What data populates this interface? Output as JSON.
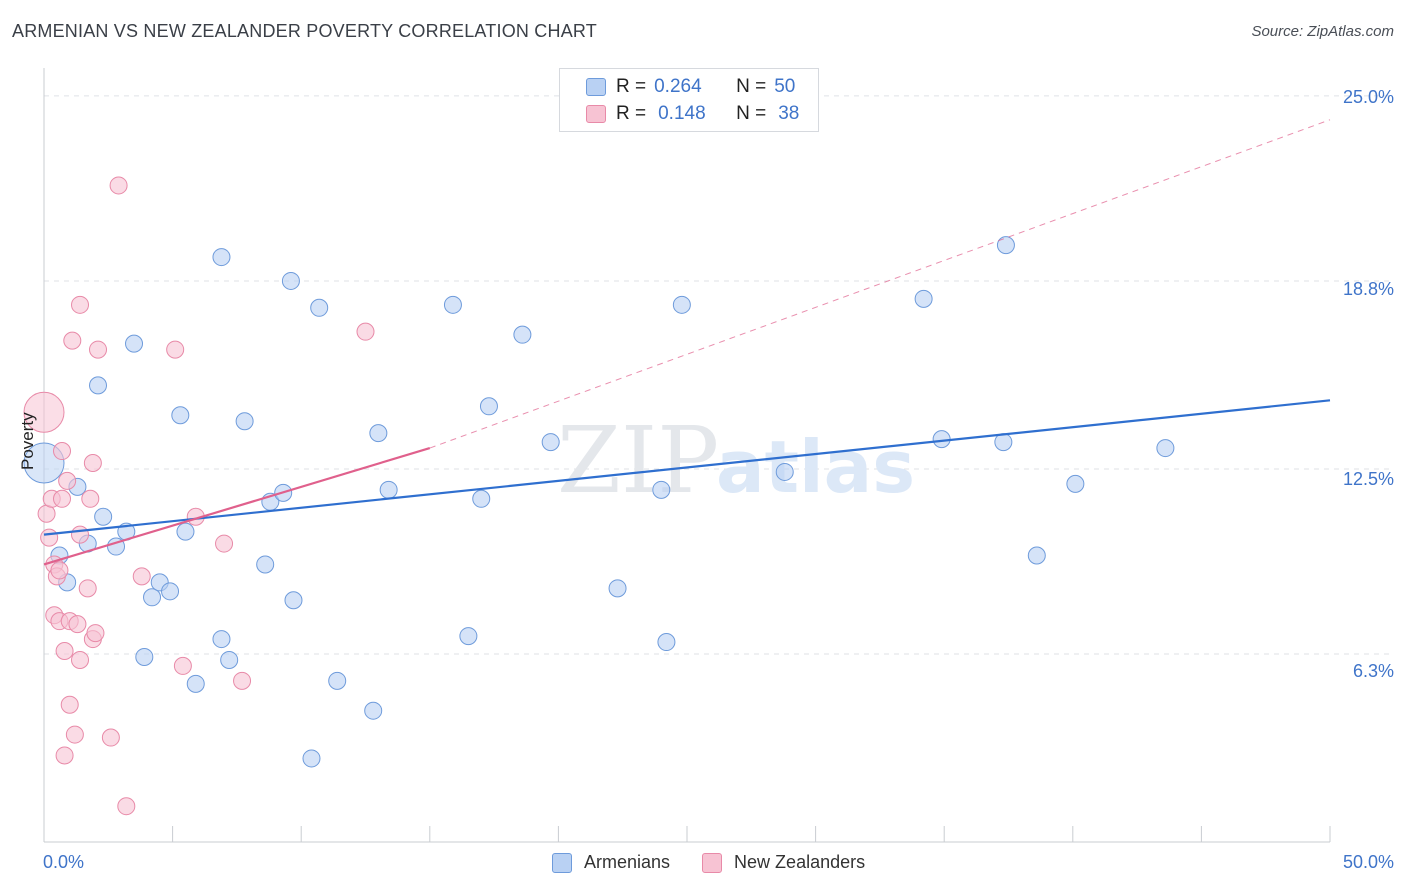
{
  "header": {
    "title": "ARMENIAN VS NEW ZEALANDER POVERTY CORRELATION CHART",
    "source": "Source: ZipAtlas.com"
  },
  "watermark": {
    "zip": "ZIP",
    "atlas": "atlas"
  },
  "colors": {
    "blue_fill": "#b9d1f3",
    "blue_stroke": "#6e9bdb",
    "blue_line": "#2f6fcf",
    "pink_fill": "#f7c3d3",
    "pink_stroke": "#e88aa8",
    "pink_line": "#e0608c",
    "axis_text": "#3f74c9",
    "grid": "#dfe2e6"
  },
  "legend": {
    "rows": [
      {
        "r_label": "R =",
        "r_value": "0.264",
        "n_label": "N =",
        "n_value": "50"
      },
      {
        "r_label": "R =",
        "r_value": "0.148",
        "n_label": "N =",
        "n_value": "38"
      }
    ]
  },
  "bottom_legend": {
    "armenians": "Armenians",
    "new_zealanders": "New Zealanders"
  },
  "chart_data": {
    "type": "scatter",
    "title": "ARMENIAN VS NEW ZEALANDER POVERTY CORRELATION CHART",
    "xlabel": "",
    "ylabel": "Poverty",
    "xlim": [
      0,
      50
    ],
    "ylim": [
      0,
      25.6
    ],
    "x_tick_labels": [
      "0.0%",
      "50.0%"
    ],
    "y_ticks": [
      6.3,
      12.5,
      18.8,
      25.0
    ],
    "y_tick_labels": [
      "6.3%",
      "12.5%",
      "18.8%",
      "25.0%"
    ],
    "series": [
      {
        "name": "Armenians",
        "r": 0.264,
        "n": 50,
        "trend": {
          "x": [
            0,
            50
          ],
          "y": [
            10.3,
            14.8
          ]
        },
        "points": [
          {
            "x": 0.0,
            "y": 12.7,
            "big": true
          },
          {
            "x": 0.6,
            "y": 9.6
          },
          {
            "x": 0.9,
            "y": 8.7
          },
          {
            "x": 1.3,
            "y": 11.9
          },
          {
            "x": 1.7,
            "y": 10.0
          },
          {
            "x": 2.3,
            "y": 10.9
          },
          {
            "x": 2.1,
            "y": 15.3
          },
          {
            "x": 2.8,
            "y": 9.9
          },
          {
            "x": 3.2,
            "y": 10.4
          },
          {
            "x": 3.5,
            "y": 16.7
          },
          {
            "x": 3.9,
            "y": 6.2
          },
          {
            "x": 4.2,
            "y": 8.2
          },
          {
            "x": 4.5,
            "y": 8.7
          },
          {
            "x": 4.9,
            "y": 8.4
          },
          {
            "x": 5.3,
            "y": 14.3
          },
          {
            "x": 5.5,
            "y": 10.4
          },
          {
            "x": 5.9,
            "y": 5.3
          },
          {
            "x": 6.9,
            "y": 19.6
          },
          {
            "x": 6.9,
            "y": 6.8
          },
          {
            "x": 7.2,
            "y": 6.1
          },
          {
            "x": 7.8,
            "y": 14.1
          },
          {
            "x": 8.6,
            "y": 9.3
          },
          {
            "x": 8.8,
            "y": 11.4
          },
          {
            "x": 9.3,
            "y": 11.7
          },
          {
            "x": 9.6,
            "y": 18.8
          },
          {
            "x": 9.7,
            "y": 8.1
          },
          {
            "x": 10.4,
            "y": 2.8
          },
          {
            "x": 10.7,
            "y": 17.9
          },
          {
            "x": 11.4,
            "y": 5.4
          },
          {
            "x": 12.8,
            "y": 4.4
          },
          {
            "x": 13.0,
            "y": 13.7
          },
          {
            "x": 13.4,
            "y": 11.8
          },
          {
            "x": 15.9,
            "y": 18.0
          },
          {
            "x": 16.5,
            "y": 6.9
          },
          {
            "x": 17.0,
            "y": 11.5
          },
          {
            "x": 17.3,
            "y": 14.6
          },
          {
            "x": 18.6,
            "y": 17.0
          },
          {
            "x": 19.7,
            "y": 13.4
          },
          {
            "x": 22.3,
            "y": 8.5
          },
          {
            "x": 24.0,
            "y": 11.8
          },
          {
            "x": 24.2,
            "y": 6.7
          },
          {
            "x": 24.8,
            "y": 18.0
          },
          {
            "x": 28.8,
            "y": 12.4
          },
          {
            "x": 34.2,
            "y": 18.2
          },
          {
            "x": 34.9,
            "y": 13.5
          },
          {
            "x": 37.3,
            "y": 13.4
          },
          {
            "x": 37.4,
            "y": 20.0
          },
          {
            "x": 38.6,
            "y": 9.6
          },
          {
            "x": 40.1,
            "y": 12.0
          },
          {
            "x": 43.6,
            "y": 13.2
          }
        ]
      },
      {
        "name": "New Zealanders",
        "r": 0.148,
        "n": 38,
        "trend": {
          "x": [
            0,
            15
          ],
          "y": [
            9.3,
            13.2
          ]
        },
        "trend_extension": {
          "x": [
            15,
            50
          ],
          "y": [
            13.2,
            24.2
          ]
        },
        "points": [
          {
            "x": 0.0,
            "y": 14.4,
            "big": true
          },
          {
            "x": 0.1,
            "y": 11.0
          },
          {
            "x": 0.2,
            "y": 10.2
          },
          {
            "x": 0.3,
            "y": 11.5
          },
          {
            "x": 0.4,
            "y": 9.3
          },
          {
            "x": 0.5,
            "y": 8.9
          },
          {
            "x": 0.4,
            "y": 7.6
          },
          {
            "x": 0.6,
            "y": 9.1
          },
          {
            "x": 0.7,
            "y": 11.5
          },
          {
            "x": 0.6,
            "y": 7.4
          },
          {
            "x": 0.7,
            "y": 13.1
          },
          {
            "x": 0.8,
            "y": 6.4
          },
          {
            "x": 0.9,
            "y": 12.1
          },
          {
            "x": 1.0,
            "y": 4.6
          },
          {
            "x": 1.0,
            "y": 7.4
          },
          {
            "x": 1.1,
            "y": 16.8
          },
          {
            "x": 1.2,
            "y": 3.6
          },
          {
            "x": 1.3,
            "y": 7.3
          },
          {
            "x": 1.4,
            "y": 6.1
          },
          {
            "x": 1.4,
            "y": 10.3
          },
          {
            "x": 1.4,
            "y": 18.0
          },
          {
            "x": 1.7,
            "y": 8.5
          },
          {
            "x": 1.8,
            "y": 11.5
          },
          {
            "x": 1.9,
            "y": 6.8
          },
          {
            "x": 1.9,
            "y": 12.7
          },
          {
            "x": 2.0,
            "y": 7.0
          },
          {
            "x": 2.1,
            "y": 16.5
          },
          {
            "x": 0.8,
            "y": 2.9
          },
          {
            "x": 2.6,
            "y": 3.5
          },
          {
            "x": 2.9,
            "y": 22.0
          },
          {
            "x": 3.2,
            "y": 1.2
          },
          {
            "x": 3.8,
            "y": 8.9
          },
          {
            "x": 5.1,
            "y": 16.5
          },
          {
            "x": 5.4,
            "y": 5.9
          },
          {
            "x": 5.9,
            "y": 10.9
          },
          {
            "x": 7.0,
            "y": 10.0
          },
          {
            "x": 7.7,
            "y": 5.4
          },
          {
            "x": 12.5,
            "y": 17.1
          }
        ]
      }
    ]
  }
}
